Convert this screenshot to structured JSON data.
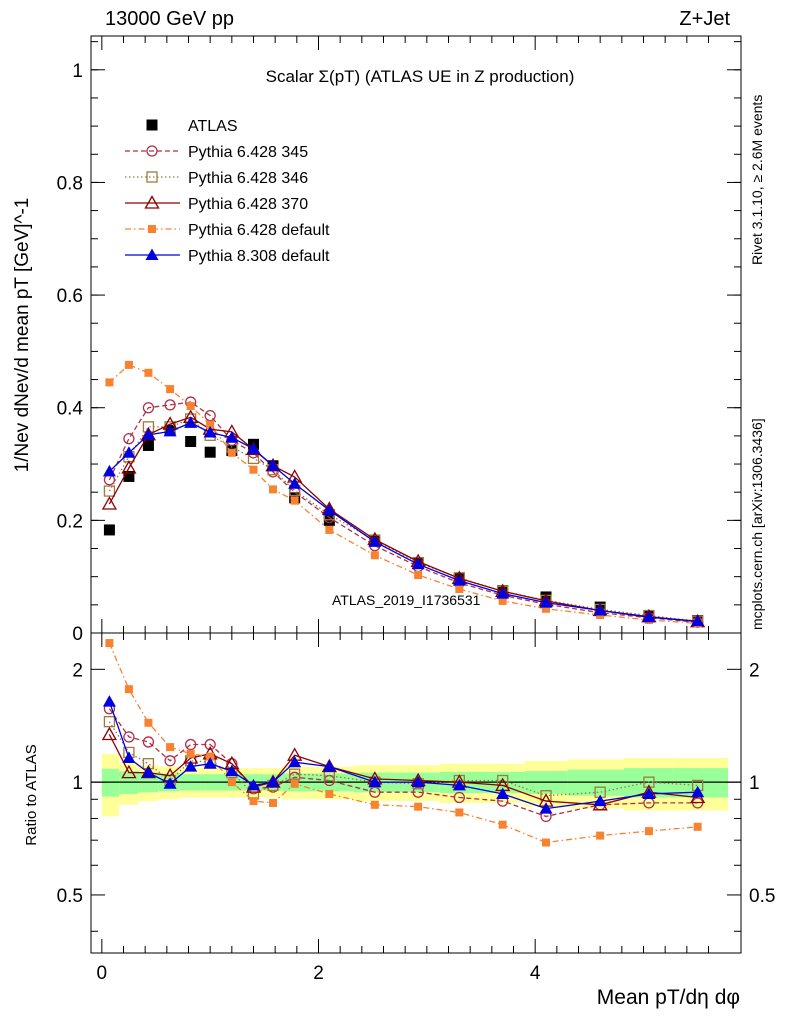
{
  "header": {
    "left": "13000 GeV pp",
    "right": "Z+Jet"
  },
  "side_labels": {
    "rivet": "Rivet 3.1.10, ≥ 2.6M events",
    "mcplots": "mcplots.cern.ch [arXiv:1306.3436]"
  },
  "chart_data": [
    {
      "type": "line",
      "title": "Scalar Σ(pT) (ATLAS UE in Z production)",
      "ylabel": "1/Nev dNev/d mean pT [GeV]^-1",
      "watermark": "ATLAS_2019_I1736531",
      "xlim": [
        -0.1,
        5.9
      ],
      "ylim": [
        0,
        1.06
      ],
      "yticks": [
        0,
        0.2,
        0.4,
        0.6,
        0.8,
        1
      ],
      "ytick_labels": [
        "0",
        "0.2",
        "0.4",
        "0.6",
        "0.8",
        "1"
      ],
      "legend_position": "top-left",
      "x": [
        0.07,
        0.25,
        0.43,
        0.63,
        0.82,
        1.0,
        1.2,
        1.4,
        1.58,
        1.78,
        2.1,
        2.52,
        2.92,
        3.3,
        3.7,
        4.1,
        4.6,
        5.05,
        5.5
      ],
      "series": [
        {
          "name": "ATLAS",
          "color": "#000000",
          "marker": "square-filled",
          "values": [
            0.183,
            0.278,
            0.333,
            0.36,
            0.34,
            0.321,
            0.324,
            0.335,
            0.297,
            0.24,
            0.2,
            0.163,
            0.125,
            0.097,
            0.075,
            0.064,
            0.046,
            0.031,
            0.022
          ]
        },
        {
          "name": "Pythia 6.428 345",
          "color": "#b0304a",
          "marker": "circle-open",
          "dash": "5,3",
          "values": [
            0.272,
            0.345,
            0.4,
            0.405,
            0.41,
            0.386,
            0.342,
            0.32,
            0.286,
            0.25,
            0.205,
            0.155,
            0.118,
            0.089,
            0.067,
            0.051,
            0.036,
            0.027,
            0.019
          ]
        },
        {
          "name": "Pythia 6.428 346",
          "color": "#a07840",
          "marker": "square-open",
          "dash": "1.5,2.5",
          "values": [
            0.252,
            0.313,
            0.366,
            0.366,
            0.38,
            0.351,
            0.33,
            0.31,
            0.29,
            0.253,
            0.21,
            0.165,
            0.125,
            0.098,
            0.074,
            0.058,
            0.042,
            0.031,
            0.021
          ]
        },
        {
          "name": "Pythia 6.428 370",
          "color": "#8b0000",
          "marker": "triangle-open",
          "dash": "",
          "values": [
            0.229,
            0.293,
            0.352,
            0.371,
            0.383,
            0.362,
            0.357,
            0.326,
            0.297,
            0.277,
            0.22,
            0.166,
            0.127,
            0.097,
            0.074,
            0.057,
            0.04,
            0.029,
            0.02
          ]
        },
        {
          "name": "Pythia 6.428 default",
          "color": "#f7822f",
          "marker": "square-filled-small",
          "dash": "6,3,1.5,3",
          "values": [
            0.445,
            0.476,
            0.462,
            0.433,
            0.403,
            0.37,
            0.32,
            0.29,
            0.255,
            0.235,
            0.183,
            0.138,
            0.103,
            0.078,
            0.057,
            0.043,
            0.032,
            0.023,
            0.017
          ]
        },
        {
          "name": "Pythia 8.308 default",
          "color": "#0000e0",
          "marker": "triangle-filled",
          "dash": "",
          "values": [
            0.287,
            0.32,
            0.352,
            0.358,
            0.373,
            0.356,
            0.347,
            0.327,
            0.297,
            0.265,
            0.218,
            0.162,
            0.122,
            0.093,
            0.07,
            0.054,
            0.04,
            0.028,
            0.021
          ]
        }
      ]
    },
    {
      "type": "line",
      "ylabel": "Ratio to ATLAS",
      "xlabel": "Mean pT/dη dφ",
      "xlim": [
        -0.1,
        5.9
      ],
      "ylim": [
        0.35,
        2.5
      ],
      "xticks": [
        0,
        2,
        4
      ],
      "xtick_labels": [
        "0",
        "2",
        "4"
      ],
      "yticks": [
        0.5,
        1,
        2
      ],
      "ytick_labels": [
        "0.5",
        "1",
        "2"
      ],
      "bin_edges": [
        0,
        0.16,
        0.34,
        0.52,
        0.72,
        0.91,
        1.1,
        1.3,
        1.49,
        1.67,
        1.88,
        2.32,
        2.72,
        3.12,
        3.5,
        3.9,
        4.3,
        4.82,
        5.28,
        5.78
      ],
      "band_green_halfwidth": [
        0.085,
        0.07,
        0.06,
        0.055,
        0.05,
        0.05,
        0.05,
        0.05,
        0.05,
        0.055,
        0.055,
        0.06,
        0.06,
        0.065,
        0.065,
        0.07,
        0.08,
        0.09,
        0.09
      ],
      "band_yellow_halfwidth": [
        0.19,
        0.13,
        0.11,
        0.1,
        0.09,
        0.09,
        0.09,
        0.09,
        0.09,
        0.1,
        0.1,
        0.11,
        0.11,
        0.12,
        0.12,
        0.14,
        0.15,
        0.16,
        0.16
      ],
      "x": [
        0.07,
        0.25,
        0.43,
        0.63,
        0.82,
        1.0,
        1.2,
        1.4,
        1.58,
        1.78,
        2.1,
        2.52,
        2.92,
        3.3,
        3.7,
        4.1,
        4.6,
        5.05,
        5.5
      ],
      "series": [
        {
          "name": "Pythia 6.428 345",
          "color": "#b0304a",
          "marker": "circle-open",
          "dash": "5,3",
          "values": [
            1.57,
            1.32,
            1.28,
            1.14,
            1.26,
            1.26,
            1.12,
            0.96,
            0.97,
            1.03,
            1.01,
            0.94,
            0.94,
            0.91,
            0.89,
            0.81,
            0.87,
            0.88,
            0.88
          ]
        },
        {
          "name": "Pythia 6.428 346",
          "color": "#a07840",
          "marker": "square-open",
          "dash": "1.5,2.5",
          "values": [
            1.45,
            1.2,
            1.12,
            1.01,
            1.14,
            1.13,
            1.06,
            0.93,
            0.98,
            1.05,
            1.04,
            1.0,
            0.99,
            1.01,
            1.01,
            0.92,
            0.94,
            1.0,
            0.98
          ]
        },
        {
          "name": "Pythia 6.428 370",
          "color": "#8b0000",
          "marker": "triangle-open",
          "dash": "",
          "values": [
            1.34,
            1.06,
            1.06,
            1.04,
            1.16,
            1.19,
            1.12,
            0.97,
            1.0,
            1.18,
            1.1,
            1.02,
            1.01,
            1.0,
            0.98,
            0.89,
            0.87,
            0.94,
            0.91
          ]
        },
        {
          "name": "Pythia 6.428 default",
          "color": "#f7822f",
          "marker": "square-filled-small",
          "dash": "6,3,1.5,3",
          "values": [
            2.35,
            1.77,
            1.44,
            1.24,
            1.19,
            1.17,
            1.0,
            0.89,
            0.88,
            0.99,
            0.93,
            0.87,
            0.86,
            0.83,
            0.77,
            0.69,
            0.72,
            0.74,
            0.76
          ]
        },
        {
          "name": "Pythia 8.308 default",
          "color": "#0000e0",
          "marker": "triangle-filled",
          "dash": "",
          "values": [
            1.64,
            1.16,
            1.06,
            0.99,
            1.1,
            1.12,
            1.07,
            0.98,
            1.0,
            1.13,
            1.1,
            1.0,
            1.0,
            0.98,
            0.93,
            0.85,
            0.89,
            0.93,
            0.94
          ]
        }
      ]
    }
  ]
}
